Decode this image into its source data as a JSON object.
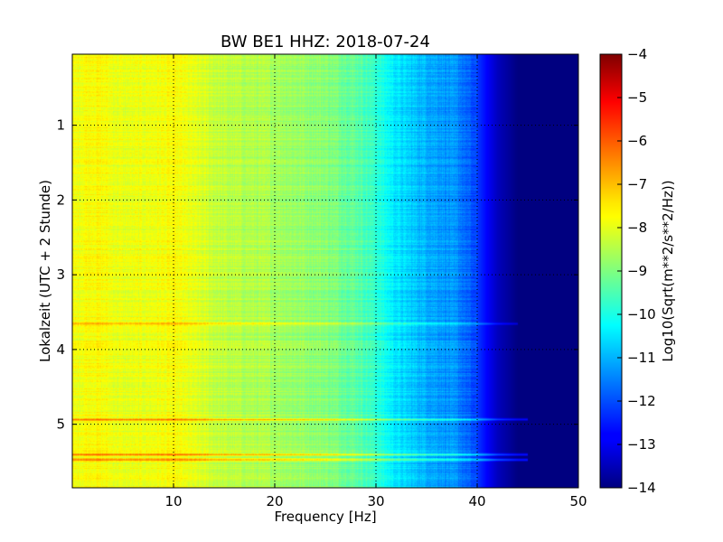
{
  "chart_data": {
    "type": "heatmap",
    "title": "BW BE1 HHZ: 2018-07-24",
    "xlabel": "Frequency [Hz]",
    "ylabel": "Lokalzeit (UTC + 2 Stunde)",
    "colorbar_label": "Log10(Sqrt(m**2/s**2/Hz))",
    "xlim": [
      0,
      50
    ],
    "ylim": [
      5.85,
      0.05
    ],
    "y_inverted": true,
    "clim": [
      -14,
      -4
    ],
    "colormap": "jet",
    "grid": true,
    "x_ticks": [
      10,
      20,
      30,
      40,
      50
    ],
    "x_tick_labels": [
      "10",
      "20",
      "30",
      "40",
      "50"
    ],
    "y_ticks": [
      1,
      2,
      3,
      4,
      5
    ],
    "y_tick_labels": [
      "1",
      "2",
      "3",
      "4",
      "5"
    ],
    "colorbar_ticks": [
      -4,
      -5,
      -6,
      -7,
      -8,
      -9,
      -10,
      -11,
      -12,
      -13,
      -14
    ],
    "colorbar_tick_labels": [
      "−4",
      "−5",
      "−6",
      "−7",
      "−8",
      "−9",
      "−10",
      "−11",
      "−12",
      "−13",
      "−14"
    ],
    "frequency_profile": {
      "frequency_hz": [
        0,
        2,
        5,
        10,
        15,
        20,
        25,
        28,
        30,
        32,
        35,
        38,
        40,
        42,
        44,
        46,
        50
      ],
      "log10_psd": [
        -7.9,
        -7.7,
        -8.0,
        -7.8,
        -8.4,
        -8.6,
        -8.9,
        -9.3,
        -9.8,
        -10.5,
        -11.0,
        -11.4,
        -12.2,
        -13.4,
        -14.0,
        -14.0,
        -14.0
      ]
    },
    "bands": [
      {
        "time_h": 3.65,
        "freq_max_hz": 44,
        "delta_log10": 0.9
      },
      {
        "time_h": 4.93,
        "freq_max_hz": 45,
        "delta_log10": 1.4
      },
      {
        "time_h": 5.4,
        "freq_max_hz": 45,
        "delta_log10": 1.6
      },
      {
        "time_h": 5.47,
        "freq_max_hz": 45,
        "delta_log10": 1.8
      }
    ]
  },
  "colors": {
    "grid": "#000000",
    "frame": "#000000"
  }
}
